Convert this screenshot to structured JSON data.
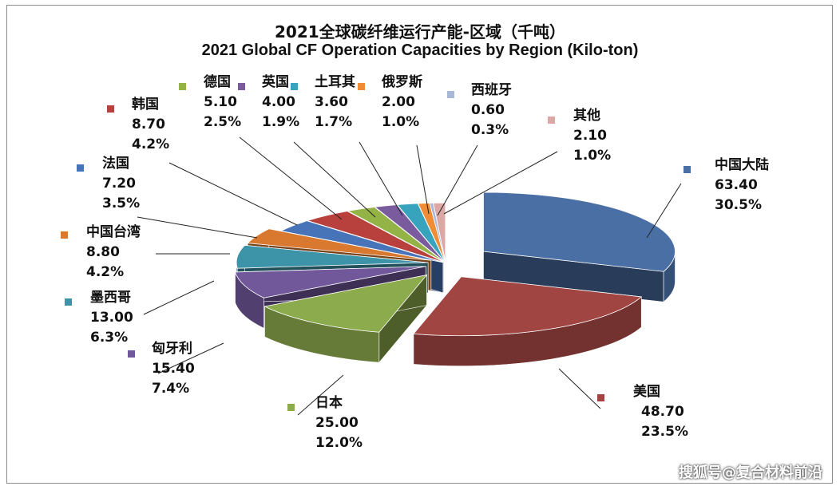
{
  "chart_data": {
    "type": "pie",
    "title": "2021全球碳纤维运行产能-区域（千吨）",
    "subtitle": "2021 Global CF Operation Capacities by Region (Kilo-ton)",
    "slices": [
      {
        "label": "中国大陆",
        "value": "63.40",
        "percent": "30.5%",
        "color": "#4a6fa5"
      },
      {
        "label": "美国",
        "value": "48.70",
        "percent": "23.5%",
        "color": "#a04541"
      },
      {
        "label": "日本",
        "value": "25.00",
        "percent": "12.0%",
        "color": "#8cab4d"
      },
      {
        "label": "匈牙利",
        "value": "15.40",
        "percent": "7.4%",
        "color": "#71589a"
      },
      {
        "label": "墨西哥",
        "value": "13.00",
        "percent": "6.3%",
        "color": "#3d94a8"
      },
      {
        "label": "中国台湾",
        "value": "8.80",
        "percent": "4.2%",
        "color": "#d9792f"
      },
      {
        "label": "法国",
        "value": "7.20",
        "percent": "3.5%",
        "color": "#4773b8"
      },
      {
        "label": "韩国",
        "value": "8.70",
        "percent": "4.2%",
        "color": "#b8403d"
      },
      {
        "label": "德国",
        "value": "5.10",
        "percent": "2.5%",
        "color": "#94b347"
      },
      {
        "label": "英国",
        "value": "4.00",
        "percent": "1.9%",
        "color": "#7a5c9e"
      },
      {
        "label": "土耳其",
        "value": "3.60",
        "percent": "1.7%",
        "color": "#37a3bd"
      },
      {
        "label": "俄罗斯",
        "value": "2.00",
        "percent": "1.0%",
        "color": "#ef8c35"
      },
      {
        "label": "西班牙",
        "value": "0.60",
        "percent": "0.3%",
        "color": "#a8b8d6"
      },
      {
        "label": "其他",
        "value": "2.10",
        "percent": "1.0%",
        "color": "#dba8a5"
      }
    ]
  },
  "watermark": "搜狐号@复合材料前沿"
}
